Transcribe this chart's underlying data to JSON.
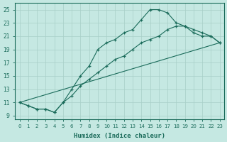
{
  "xlabel": "Humidex (Indice chaleur)",
  "ylabel": "",
  "xlim": [
    -0.5,
    23.5
  ],
  "ylim": [
    8.5,
    26.0
  ],
  "xticks": [
    0,
    1,
    2,
    3,
    4,
    5,
    6,
    7,
    8,
    9,
    10,
    11,
    12,
    13,
    14,
    15,
    16,
    17,
    18,
    19,
    20,
    21,
    22,
    23
  ],
  "yticks": [
    9,
    11,
    13,
    15,
    17,
    19,
    21,
    23,
    25
  ],
  "bg_color": "#c5e8e2",
  "grid_color": "#a8cfc8",
  "line_color": "#1a6b5a",
  "line1": {
    "x": [
      0,
      1,
      2,
      3,
      4,
      5,
      6,
      7,
      8,
      9,
      10,
      11,
      12,
      13,
      14,
      15,
      16,
      17,
      18,
      19,
      20,
      21,
      22,
      23
    ],
    "y": [
      11.0,
      10.5,
      10.0,
      10.0,
      9.5,
      11.0,
      13.0,
      15.0,
      16.5,
      19.0,
      20.0,
      20.5,
      21.5,
      22.0,
      23.5,
      25.0,
      25.0,
      24.5,
      23.0,
      22.5,
      21.5,
      21.0,
      21.0,
      20.0
    ]
  },
  "line2": {
    "x": [
      0,
      1,
      2,
      3,
      4,
      5,
      6,
      7,
      8,
      9,
      10,
      11,
      12,
      13,
      14,
      15,
      16,
      17,
      18,
      19,
      20,
      21,
      22,
      23
    ],
    "y": [
      11.0,
      10.5,
      10.0,
      10.0,
      9.5,
      11.0,
      12.0,
      13.5,
      14.5,
      15.5,
      16.5,
      17.5,
      18.0,
      19.0,
      20.0,
      20.5,
      21.0,
      22.0,
      22.5,
      22.5,
      22.0,
      21.5,
      21.0,
      20.0
    ]
  },
  "line3": {
    "x": [
      0,
      23
    ],
    "y": [
      11.0,
      20.0
    ]
  }
}
